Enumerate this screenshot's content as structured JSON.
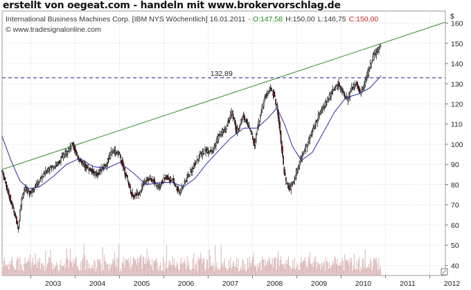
{
  "banner": "erstellt von oegeat.com - handeln mit www.brokervorschlag.de",
  "chart_data": {
    "type": "candlestick",
    "header": {
      "instrument": "International Business Machines Corp. [IBM NYS  Wöchentlich] 16.01.2011",
      "open": "- O:147,58",
      "high": "H:150,00",
      "low": "L:146,75",
      "close": "C:150,00",
      "copyright": "© www.tradesignalonline.com"
    },
    "currency_label": "$",
    "ylim": [
      35,
      166
    ],
    "y_ticks": [
      "40",
      "50",
      "60",
      "70",
      "80",
      "90",
      "100",
      "110",
      "120",
      "130",
      "140",
      "150",
      "160"
    ],
    "x_range": [
      2002.35,
      2012.35
    ],
    "x_tick_labels": [
      "2003",
      "2004",
      "2005",
      "2006",
      "2007",
      "2008",
      "2009",
      "2010",
      "2011",
      "2012"
    ],
    "horizontal_level": {
      "value": 132.89,
      "label": "132,89"
    },
    "trendline": {
      "from": [
        2002.35,
        87.5
      ],
      "to": [
        2012.35,
        160.5
      ]
    },
    "price_path": [
      [
        2002.35,
        87
      ],
      [
        2002.45,
        80
      ],
      [
        2002.55,
        72
      ],
      [
        2002.65,
        65
      ],
      [
        2002.72,
        58
      ],
      [
        2002.78,
        70
      ],
      [
        2002.85,
        78
      ],
      [
        2003.0,
        76
      ],
      [
        2003.2,
        82
      ],
      [
        2003.4,
        88
      ],
      [
        2003.6,
        90
      ],
      [
        2003.8,
        96
      ],
      [
        2003.95,
        100
      ],
      [
        2004.1,
        92
      ],
      [
        2004.3,
        88
      ],
      [
        2004.5,
        85
      ],
      [
        2004.7,
        90
      ],
      [
        2004.85,
        97
      ],
      [
        2005.0,
        95
      ],
      [
        2005.15,
        85
      ],
      [
        2005.3,
        74
      ],
      [
        2005.45,
        76
      ],
      [
        2005.6,
        83
      ],
      [
        2005.75,
        82
      ],
      [
        2005.9,
        79
      ],
      [
        2006.05,
        84
      ],
      [
        2006.2,
        82
      ],
      [
        2006.35,
        76
      ],
      [
        2006.5,
        82
      ],
      [
        2006.65,
        88
      ],
      [
        2006.8,
        94
      ],
      [
        2006.95,
        97
      ],
      [
        2007.1,
        96
      ],
      [
        2007.25,
        104
      ],
      [
        2007.4,
        108
      ],
      [
        2007.55,
        116
      ],
      [
        2007.65,
        106
      ],
      [
        2007.8,
        114
      ],
      [
        2007.95,
        108
      ],
      [
        2008.05,
        100
      ],
      [
        2008.2,
        116
      ],
      [
        2008.3,
        124
      ],
      [
        2008.42,
        128
      ],
      [
        2008.5,
        124
      ],
      [
        2008.58,
        116
      ],
      [
        2008.66,
        100
      ],
      [
        2008.72,
        86
      ],
      [
        2008.78,
        80
      ],
      [
        2008.85,
        78
      ],
      [
        2008.95,
        82
      ],
      [
        2009.05,
        90
      ],
      [
        2009.2,
        98
      ],
      [
        2009.35,
        106
      ],
      [
        2009.5,
        114
      ],
      [
        2009.65,
        120
      ],
      [
        2009.8,
        126
      ],
      [
        2009.95,
        130
      ],
      [
        2010.05,
        126
      ],
      [
        2010.15,
        122
      ],
      [
        2010.25,
        128
      ],
      [
        2010.35,
        130
      ],
      [
        2010.45,
        125
      ],
      [
        2010.55,
        131
      ],
      [
        2010.65,
        138
      ],
      [
        2010.75,
        144
      ],
      [
        2010.85,
        147
      ],
      [
        2010.9,
        149.5
      ]
    ],
    "moving_average_path": [
      [
        2002.35,
        104
      ],
      [
        2002.55,
        92
      ],
      [
        2002.75,
        82
      ],
      [
        2002.95,
        78
      ],
      [
        2003.2,
        79
      ],
      [
        2003.5,
        84
      ],
      [
        2003.8,
        90
      ],
      [
        2004.1,
        93
      ],
      [
        2004.4,
        89
      ],
      [
        2004.7,
        88
      ],
      [
        2005.0,
        91
      ],
      [
        2005.3,
        86
      ],
      [
        2005.6,
        80
      ],
      [
        2005.9,
        81
      ],
      [
        2006.2,
        81
      ],
      [
        2006.45,
        79
      ],
      [
        2006.7,
        83
      ],
      [
        2006.95,
        90
      ],
      [
        2007.2,
        96
      ],
      [
        2007.5,
        103
      ],
      [
        2007.8,
        108
      ],
      [
        2008.1,
        108
      ],
      [
        2008.35,
        113
      ],
      [
        2008.55,
        118
      ],
      [
        2008.72,
        110
      ],
      [
        2008.9,
        99
      ],
      [
        2009.1,
        92
      ],
      [
        2009.35,
        96
      ],
      [
        2009.6,
        106
      ],
      [
        2009.85,
        116
      ],
      [
        2010.1,
        123
      ],
      [
        2010.4,
        125
      ],
      [
        2010.65,
        128
      ],
      [
        2010.9,
        134
      ]
    ],
    "colors": {
      "trendline": "#2e8b2e",
      "moving_average": "#2b2b9e",
      "level_line": "#1a1a80",
      "candle_up": "#ffffff",
      "candle_down": "#b22222",
      "wick": "#000000",
      "volume": "#d9b3b3",
      "grid": "#c8c8c8",
      "open_value": "#1a8a1a",
      "close_value": "#d02020"
    }
  }
}
